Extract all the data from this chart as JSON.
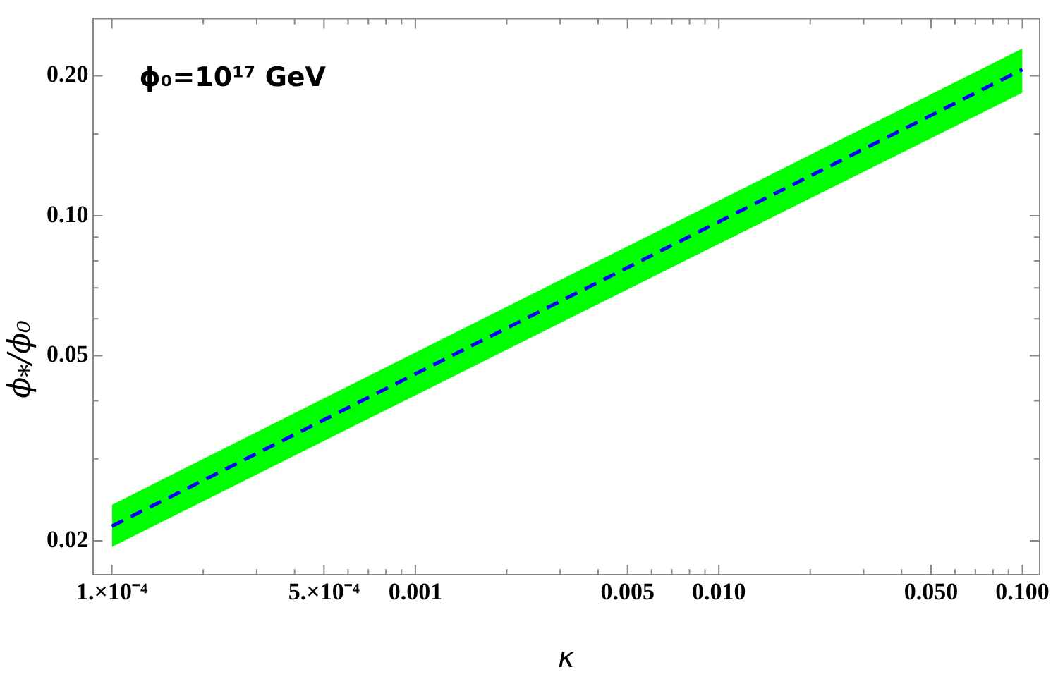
{
  "chart_data": {
    "type": "line",
    "xlabel": "κ",
    "ylabel": "ϕ$_{*}$/ϕ₀",
    "annotations": [
      "ϕ₀=10¹⁷ GeV"
    ],
    "x": [
      0.0001,
      0.001,
      0.01,
      0.1
    ],
    "series": [
      {
        "color": "#0000ff",
        "values": [
          0.0215,
          0.0457,
          0.0971,
          0.2064
        ],
        "lower": [
          0.0194,
          0.0411,
          0.087,
          0.184
        ],
        "upper": [
          0.0239,
          0.0508,
          0.1078,
          0.229
        ],
        "line_style": "dashed"
      }
    ],
    "log": "xy",
    "grid": false,
    "legend": false,
    "marker": "none",
    "xlim": [
      8.65e-05,
      0.114
    ],
    "xticks": [
      {
        "value": 0.0001,
        "label": "1.×10⁻⁴"
      },
      {
        "value": 0.0002,
        "label": null
      },
      {
        "value": 0.0003,
        "label": null
      },
      {
        "value": 0.0004,
        "label": null
      },
      {
        "value": 0.0005,
        "label": "5.×10⁻⁴"
      },
      {
        "value": 0.0006,
        "label": null
      },
      {
        "value": 0.0007,
        "label": null
      },
      {
        "value": 0.0008,
        "label": null
      },
      {
        "value": 0.0009,
        "label": null
      },
      0.001,
      {
        "value": 0.002,
        "label": null
      },
      {
        "value": 0.003,
        "label": null
      },
      {
        "value": 0.004,
        "label": null
      },
      0.005,
      {
        "value": 0.006,
        "label": null
      },
      {
        "value": 0.007,
        "label": null
      },
      {
        "value": 0.008,
        "label": null
      },
      {
        "value": 0.009,
        "label": null
      },
      {
        "value": 0.01,
        "label": "0.010"
      },
      {
        "value": 0.02,
        "label": null
      },
      {
        "value": 0.03,
        "label": null
      },
      {
        "value": 0.04,
        "label": null
      },
      {
        "value": 0.05,
        "label": "0.050"
      },
      {
        "value": 0.06,
        "label": null
      },
      {
        "value": 0.07,
        "label": null
      },
      {
        "value": 0.08,
        "label": null
      },
      {
        "value": 0.09,
        "label": null
      },
      {
        "value": 0.1,
        "label": "0.100"
      }
    ],
    "ylim": [
      0.0169,
      0.2655
    ],
    "yticks": [
      0.02,
      {
        "value": 0.03,
        "label": null
      },
      {
        "value": 0.04,
        "label": null
      },
      0.05,
      {
        "value": 0.06,
        "label": null
      },
      {
        "value": 0.07,
        "label": null
      },
      {
        "value": 0.08,
        "label": null
      },
      {
        "value": 0.09,
        "label": null
      },
      {
        "value": 0.1,
        "label": "0.10"
      },
      {
        "value": 0.15,
        "label": null
      },
      {
        "value": 0.2,
        "label": "0.20"
      }
    ]
  }
}
